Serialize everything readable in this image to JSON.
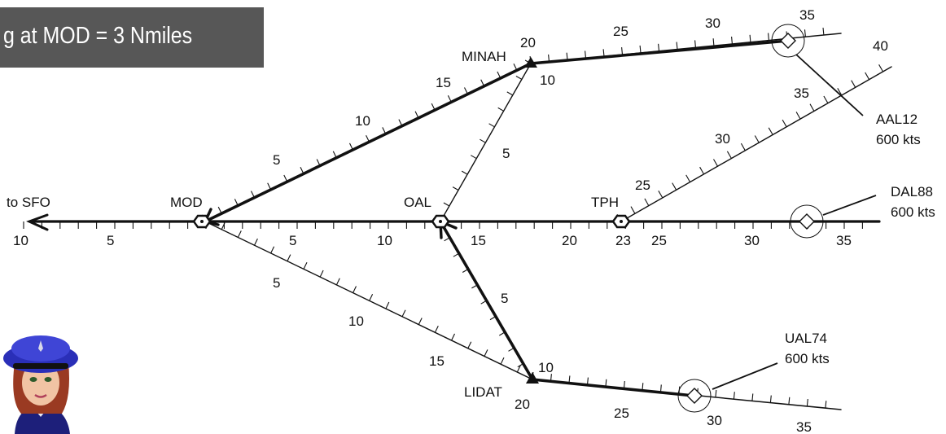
{
  "banner": {
    "text": "g at MOD = 3 Nmiles"
  },
  "destination": {
    "label": "to SFO"
  },
  "fixes": {
    "mod": "MOD",
    "oal": "OAL",
    "tph": "TPH",
    "minah": "MINAH",
    "lidat": "LIDAT"
  },
  "aircraft": {
    "aal12": {
      "callsign": "AAL12",
      "speed": "600 kts"
    },
    "dal88": {
      "callsign": "DAL88",
      "speed": "600 kts"
    },
    "ual74": {
      "callsign": "UAL74",
      "speed": "600 kts"
    }
  },
  "mileage": {
    "main": [
      "10",
      "5",
      "5",
      "10",
      "15",
      "20",
      "23",
      "25",
      "30",
      "35"
    ],
    "mod_minah": [
      "5",
      "10",
      "15",
      "20"
    ],
    "minah_east": [
      "25",
      "30",
      "35"
    ],
    "minah_oal": [
      "10",
      "5"
    ],
    "tph_ne": [
      "25",
      "30",
      "35",
      "40"
    ],
    "mod_lidat": [
      "5",
      "10",
      "15"
    ],
    "lidat_oal": [
      "10",
      "5"
    ],
    "lidat_east": [
      "20",
      "25",
      "30",
      "35"
    ]
  },
  "colors": {
    "line": "#111111",
    "banner": "#575757",
    "banner_text": "#ffffff",
    "cap": "#2a2fb8"
  },
  "icons": [
    "vor-hexagon-icon",
    "waypoint-triangle-icon",
    "aircraft-diamond-icon",
    "controller-avatar-icon"
  ]
}
